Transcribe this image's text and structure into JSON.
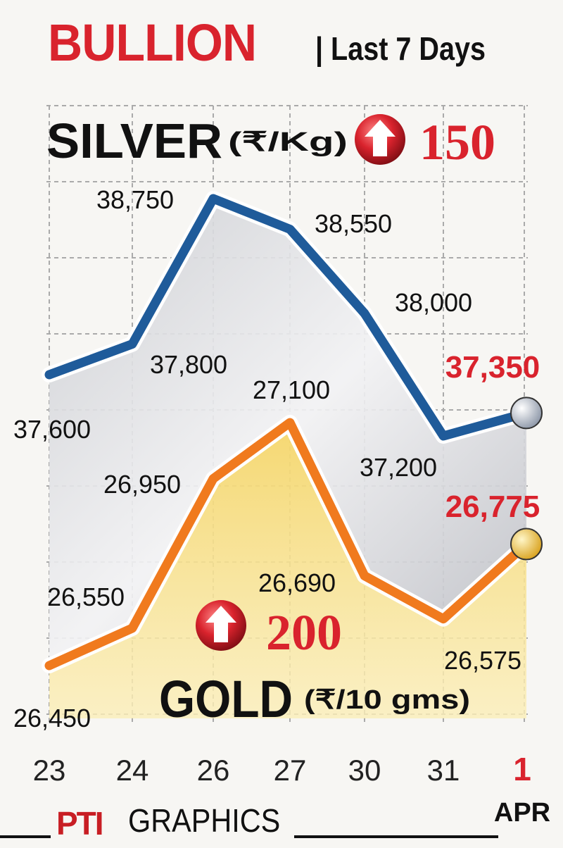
{
  "header": {
    "title": "BULLION",
    "subtitle": "| Last 7 Days"
  },
  "footer": {
    "logo_text": "PTI",
    "label": "GRAPHICS"
  },
  "colors": {
    "silver_line": "#1f5b9a",
    "gold_line": "#f07a1e",
    "highlight_red": "#d9232d",
    "grid": "#aaaaaa"
  },
  "chart_data": [
    {
      "type": "line",
      "title": "SILVER",
      "unit_label": "(₹/Kg)",
      "change_icon": "up-arrow-icon",
      "change": "150",
      "categories": [
        "23",
        "24",
        "26",
        "27",
        "30",
        "31",
        "1"
      ],
      "month_label": "APR",
      "series": [
        {
          "values": [
            37600,
            37800,
            38750,
            38550,
            38000,
            37200,
            37350
          ],
          "value_labels": [
            "37,600",
            "37,800",
            "38,750",
            "38,550",
            "38,000",
            "37,200",
            "37,350"
          ]
        }
      ],
      "highlight_last": true
    },
    {
      "type": "line",
      "title": "GOLD",
      "unit_label": "(₹/10 gms)",
      "change_icon": "up-arrow-icon",
      "change": "200",
      "categories": [
        "23",
        "24",
        "26",
        "27",
        "30",
        "31",
        "1"
      ],
      "month_label": "APR",
      "series": [
        {
          "values": [
            26450,
            26550,
            26950,
            27100,
            26690,
            26575,
            26775
          ],
          "value_labels": [
            "26,450",
            "26,550",
            "26,950",
            "27,100",
            "26,690",
            "26,575",
            "26,775"
          ]
        }
      ],
      "highlight_last": true
    }
  ]
}
